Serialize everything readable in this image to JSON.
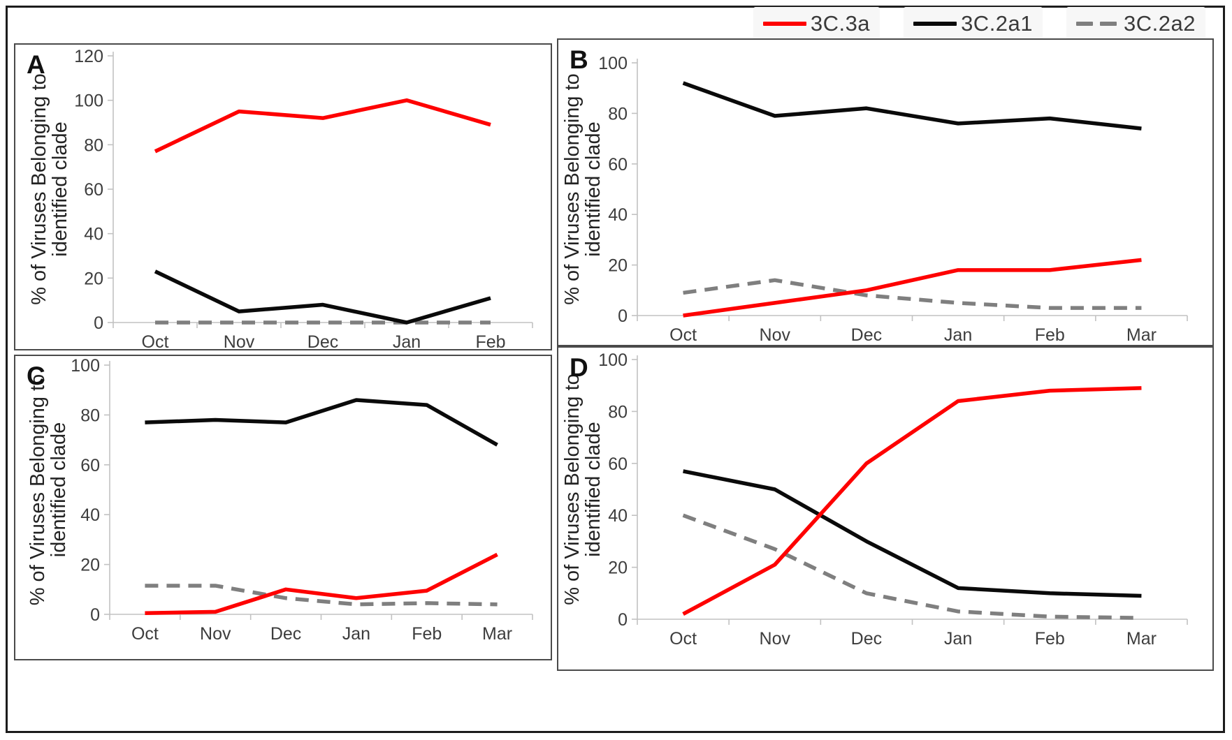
{
  "figure": {
    "y_axis_title": "% of Viruses Belonging to\nidentified clade",
    "legend": [
      {
        "label": "3C.3a",
        "color": "#fe0000",
        "dash": "solid"
      },
      {
        "label": "3C.2a1",
        "color": "#0a0a0a",
        "dash": "solid"
      },
      {
        "label": "3C.2a2",
        "color": "#7f7f7f",
        "dash": "dashed"
      }
    ]
  },
  "chart_data": [
    {
      "panel": "A",
      "type": "line",
      "categories": [
        "Oct",
        "Nov",
        "Dec",
        "Jan",
        "Feb"
      ],
      "ylim": [
        0,
        120
      ],
      "ytick_step": 20,
      "grid": false,
      "ylabel": "% of Viruses Belonging to identified clade",
      "legend_position": "top-right-of-figure",
      "series": [
        {
          "name": "3C.3a",
          "values": [
            77,
            95,
            92,
            100,
            89
          ]
        },
        {
          "name": "3C.2a1",
          "values": [
            23,
            5,
            8,
            0,
            11
          ]
        },
        {
          "name": "3C.2a2",
          "values": [
            0,
            0,
            0,
            0,
            0
          ]
        }
      ]
    },
    {
      "panel": "B",
      "type": "line",
      "categories": [
        "Oct",
        "Nov",
        "Dec",
        "Jan",
        "Feb",
        "Mar"
      ],
      "ylim": [
        0,
        100
      ],
      "ytick_step": 20,
      "grid": false,
      "ylabel": "% of Viruses Belonging to identified clade",
      "series": [
        {
          "name": "3C.3a",
          "values": [
            0,
            5,
            10,
            18,
            18,
            22
          ]
        },
        {
          "name": "3C.2a1",
          "values": [
            92,
            79,
            82,
            76,
            78,
            74
          ]
        },
        {
          "name": "3C.2a2",
          "values": [
            9,
            14,
            8,
            5,
            3,
            3
          ]
        }
      ]
    },
    {
      "panel": "C",
      "type": "line",
      "categories": [
        "Oct",
        "Nov",
        "Dec",
        "Jan",
        "Feb",
        "Mar"
      ],
      "ylim": [
        0,
        100
      ],
      "ytick_step": 20,
      "grid": false,
      "ylabel": "% of Viruses Belonging to identified clade",
      "series": [
        {
          "name": "3C.3a",
          "values": [
            0.5,
            1,
            10,
            6.5,
            9.5,
            24
          ]
        },
        {
          "name": "3C.2a1",
          "values": [
            77,
            78,
            77,
            86,
            84,
            68
          ]
        },
        {
          "name": "3C.2a2",
          "values": [
            11.5,
            11.5,
            6.5,
            4,
            4.5,
            4
          ]
        }
      ]
    },
    {
      "panel": "D",
      "type": "line",
      "categories": [
        "Oct",
        "Nov",
        "Dec",
        "Jan",
        "Feb",
        "Mar"
      ],
      "ylim": [
        0,
        100
      ],
      "ytick_step": 20,
      "grid": false,
      "ylabel": "% of Viruses Belonging to identified clade",
      "series": [
        {
          "name": "3C.3a",
          "values": [
            2,
            21,
            60,
            84,
            88,
            89
          ]
        },
        {
          "name": "3C.2a1",
          "values": [
            57,
            50,
            30,
            12,
            10,
            9
          ]
        },
        {
          "name": "3C.2a2",
          "values": [
            40,
            27,
            10,
            3,
            1,
            0.5
          ]
        }
      ]
    }
  ]
}
